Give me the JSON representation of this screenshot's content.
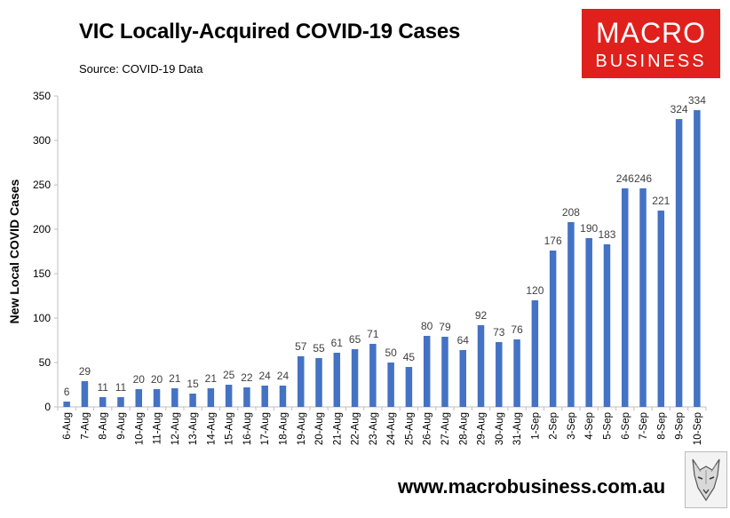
{
  "title": "VIC Locally-Acquired COVID-19 Cases",
  "source": "Source: COVID-19 Data",
  "logo": {
    "line1": "MACRO",
    "line2": "BUSINESS",
    "color": "#e0201c"
  },
  "website": "www.macrobusiness.com.au",
  "wolf_icon": "wolf-head-icon",
  "chart_data": {
    "type": "bar",
    "title": "",
    "xlabel": "",
    "ylabel": "New Local COVID Cases",
    "ylim": [
      0,
      350
    ],
    "yticks": [
      0,
      50,
      100,
      150,
      200,
      250,
      300,
      350
    ],
    "grid": false,
    "bar_color": "#4472c4",
    "categories": [
      "6-Aug",
      "7-Aug",
      "8-Aug",
      "9-Aug",
      "10-Aug",
      "11-Aug",
      "12-Aug",
      "13-Aug",
      "14-Aug",
      "15-Aug",
      "16-Aug",
      "17-Aug",
      "18-Aug",
      "19-Aug",
      "20-Aug",
      "21-Aug",
      "22-Aug",
      "23-Aug",
      "24-Aug",
      "25-Aug",
      "26-Aug",
      "27-Aug",
      "28-Aug",
      "29-Aug",
      "30-Aug",
      "31-Aug",
      "1-Sep",
      "2-Sep",
      "3-Sep",
      "4-Sep",
      "5-Sep",
      "6-Sep",
      "7-Sep",
      "8-Sep",
      "9-Sep",
      "10-Sep"
    ],
    "values": [
      6,
      29,
      11,
      11,
      20,
      20,
      21,
      15,
      21,
      25,
      22,
      24,
      24,
      57,
      55,
      61,
      65,
      71,
      50,
      45,
      80,
      79,
      64,
      92,
      73,
      76,
      120,
      176,
      208,
      190,
      183,
      246,
      246,
      221,
      324,
      334
    ]
  }
}
